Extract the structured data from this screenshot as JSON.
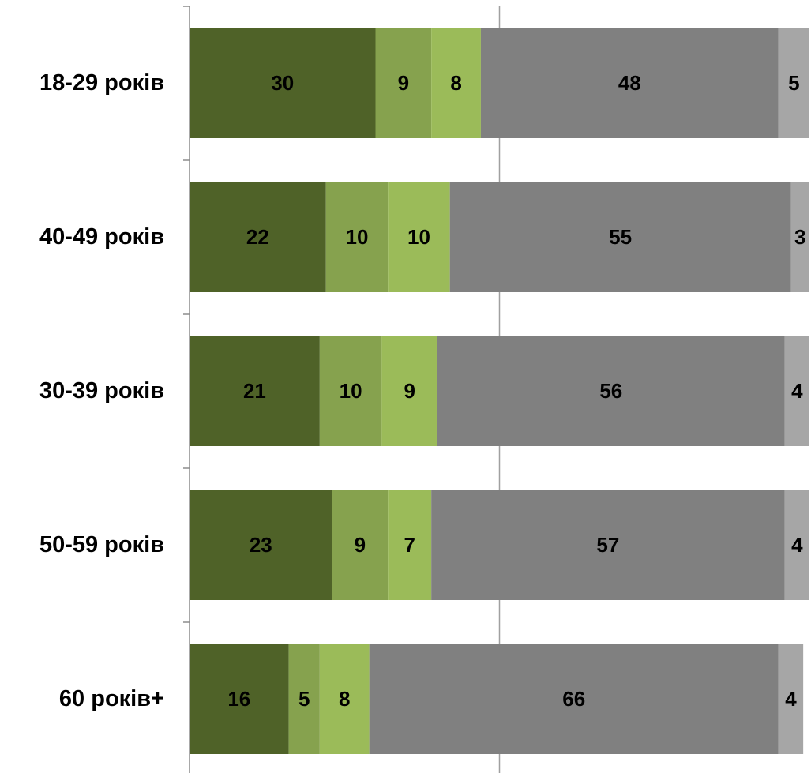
{
  "chart_data": {
    "type": "bar",
    "orientation": "horizontal",
    "stacked": true,
    "title": "",
    "xlabel": "",
    "ylabel": "",
    "xlim": [
      0,
      100
    ],
    "grid": true,
    "categories": [
      "18-29 років",
      "40-49 років",
      "30-39 років",
      "50-59 років",
      "60 років+"
    ],
    "series": [
      {
        "values": [
          30,
          22,
          21,
          23,
          16
        ],
        "color": "#4f6228"
      },
      {
        "values": [
          9,
          10,
          10,
          9,
          5
        ],
        "color": "#86a24e"
      },
      {
        "values": [
          8,
          10,
          9,
          7,
          8
        ],
        "color": "#9bbb59"
      },
      {
        "values": [
          48,
          55,
          56,
          57,
          66
        ],
        "color": "#808080"
      },
      {
        "values": [
          5,
          3,
          4,
          4,
          4
        ],
        "color": "#a6a6a6"
      }
    ]
  }
}
